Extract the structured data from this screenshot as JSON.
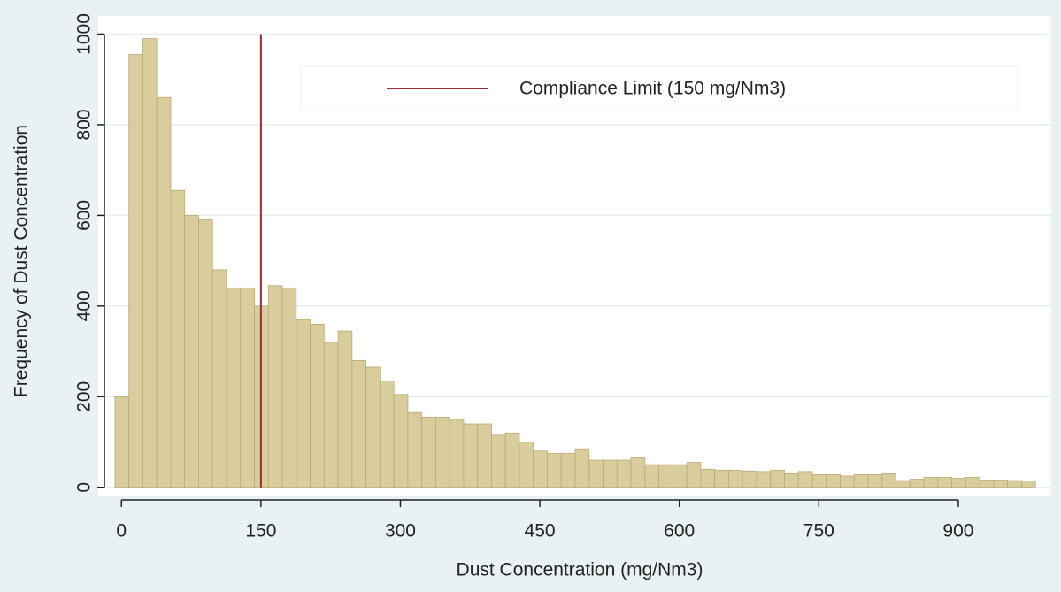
{
  "chart_data": {
    "type": "histogram",
    "x_label": "Dust Concentration (mg/Nm3)",
    "y_label": "Frequency of Dust Concentration",
    "bins": [
      -7,
      8,
      23,
      38,
      53,
      68,
      83,
      98,
      113,
      128,
      143,
      158,
      173,
      188,
      203,
      218,
      233,
      248,
      263,
      278,
      293,
      308,
      323,
      338,
      353,
      368,
      383,
      398,
      413,
      428,
      443,
      458,
      473,
      488,
      503,
      518,
      533,
      548,
      563,
      578,
      593,
      608,
      623,
      638,
      653,
      668,
      683,
      698,
      713,
      728,
      743,
      758,
      773,
      788,
      803,
      818,
      833,
      848,
      863,
      878,
      893,
      908,
      923,
      938,
      953,
      968,
      983
    ],
    "values": [
      200,
      955,
      990,
      860,
      655,
      600,
      590,
      480,
      440,
      440,
      400,
      445,
      440,
      370,
      360,
      320,
      345,
      280,
      265,
      235,
      205,
      165,
      155,
      155,
      150,
      140,
      140,
      115,
      120,
      100,
      80,
      75,
      75,
      85,
      60,
      60,
      60,
      65,
      50,
      50,
      50,
      55,
      40,
      38,
      38,
      36,
      35,
      38,
      30,
      35,
      28,
      28,
      25,
      28,
      28,
      30,
      15,
      18,
      22,
      22,
      20,
      22,
      16,
      16,
      15,
      14
    ],
    "color": "#d9cd9d",
    "vline": {
      "name": "Compliance Limit (150 mg/Nm3)",
      "value": 150,
      "color": "#9b2b35"
    },
    "xlim": [
      -25,
      1000
    ],
    "ylim": [
      -20,
      1040
    ],
    "xticks": [
      0,
      150,
      300,
      450,
      600,
      750,
      900
    ],
    "yticks": [
      0,
      200,
      400,
      600,
      800,
      1000
    ],
    "grid": true
  }
}
